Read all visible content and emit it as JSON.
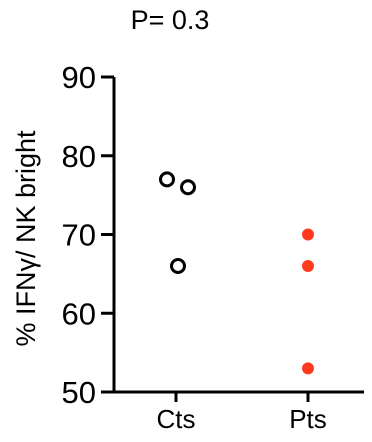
{
  "chart_data": {
    "type": "scatter",
    "title": "P= 0.3",
    "xlabel": "",
    "ylabel": "% IFNγ/ NK bright",
    "categories": [
      "Cts",
      "Pts"
    ],
    "ylim": [
      50,
      90
    ],
    "yticks": [
      50,
      60,
      70,
      80,
      90
    ],
    "grid": false,
    "series": [
      {
        "category": "Cts",
        "marker": "open-circle",
        "color": "#000000",
        "points": [
          {
            "x": "Cts",
            "y": 77
          },
          {
            "x": "Cts",
            "y": 76
          },
          {
            "x": "Cts",
            "y": 66
          }
        ]
      },
      {
        "category": "Pts",
        "marker": "filled-circle",
        "color": "#FF3B1F",
        "points": [
          {
            "x": "Pts",
            "y": 70
          },
          {
            "x": "Pts",
            "y": 66
          },
          {
            "x": "Pts",
            "y": 53
          }
        ]
      }
    ]
  }
}
